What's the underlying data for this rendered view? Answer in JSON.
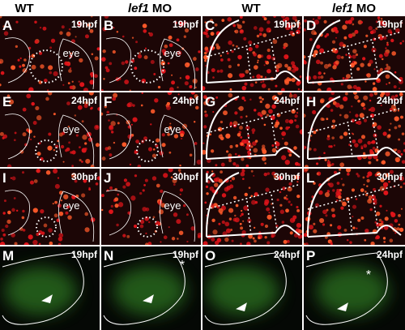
{
  "header": [
    {
      "text": "WT"
    },
    {
      "italic": "lef1",
      "text": "MO"
    },
    {
      "text": "WT"
    },
    {
      "italic": "lef1",
      "text": "MO"
    }
  ],
  "panels": [
    {
      "letter": "A",
      "stage": "19hpf",
      "labels": [
        "eye"
      ]
    },
    {
      "letter": "B",
      "stage": "19hpf",
      "labels": [
        "eye"
      ]
    },
    {
      "letter": "C",
      "stage": "19hpf"
    },
    {
      "letter": "D",
      "stage": "19hpf"
    },
    {
      "letter": "E",
      "stage": "24hpf",
      "labels": [
        "eye"
      ]
    },
    {
      "letter": "F",
      "stage": "24hpf",
      "labels": [
        "eye"
      ]
    },
    {
      "letter": "G",
      "stage": "24hpf"
    },
    {
      "letter": "H",
      "stage": "24hpf"
    },
    {
      "letter": "I",
      "stage": "30hpf",
      "labels": [
        "eye"
      ]
    },
    {
      "letter": "J",
      "stage": "30hpf",
      "labels": [
        "eye"
      ]
    },
    {
      "letter": "K",
      "stage": "30hpf"
    },
    {
      "letter": "L",
      "stage": "30hpf"
    },
    {
      "letter": "M",
      "stage": "19hpf"
    },
    {
      "letter": "N",
      "stage": "19hpf",
      "labels": [
        "*"
      ]
    },
    {
      "letter": "O",
      "stage": "24hpf"
    },
    {
      "letter": "P",
      "stage": "24hpf",
      "labels": [
        "*"
      ]
    }
  ]
}
